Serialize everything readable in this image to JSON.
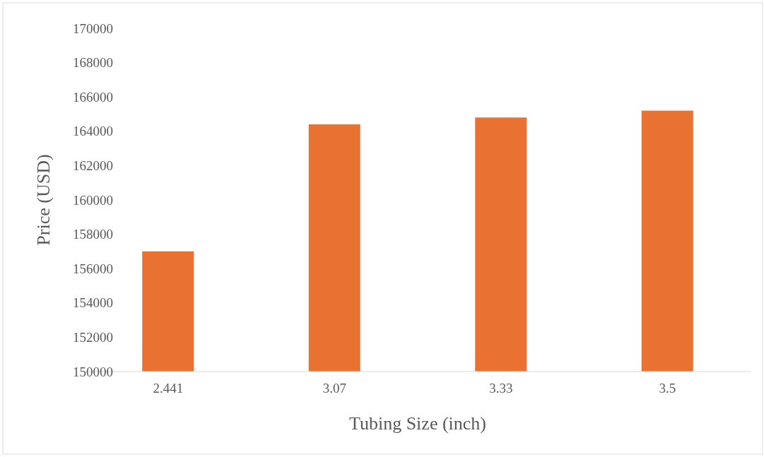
{
  "chart_data": {
    "type": "bar",
    "xlabel": "Tubing Size (inch)",
    "ylabel": "Price (USD)",
    "categories": [
      "2.441",
      "3.07",
      "3.33",
      "3.5"
    ],
    "values": [
      157000,
      164400,
      164800,
      165200
    ],
    "color": "#e97132",
    "ylim": [
      150000,
      170000
    ],
    "yticks": [
      150000,
      152000,
      154000,
      156000,
      158000,
      160000,
      162000,
      164000,
      166000,
      168000,
      170000
    ],
    "grid": false
  }
}
